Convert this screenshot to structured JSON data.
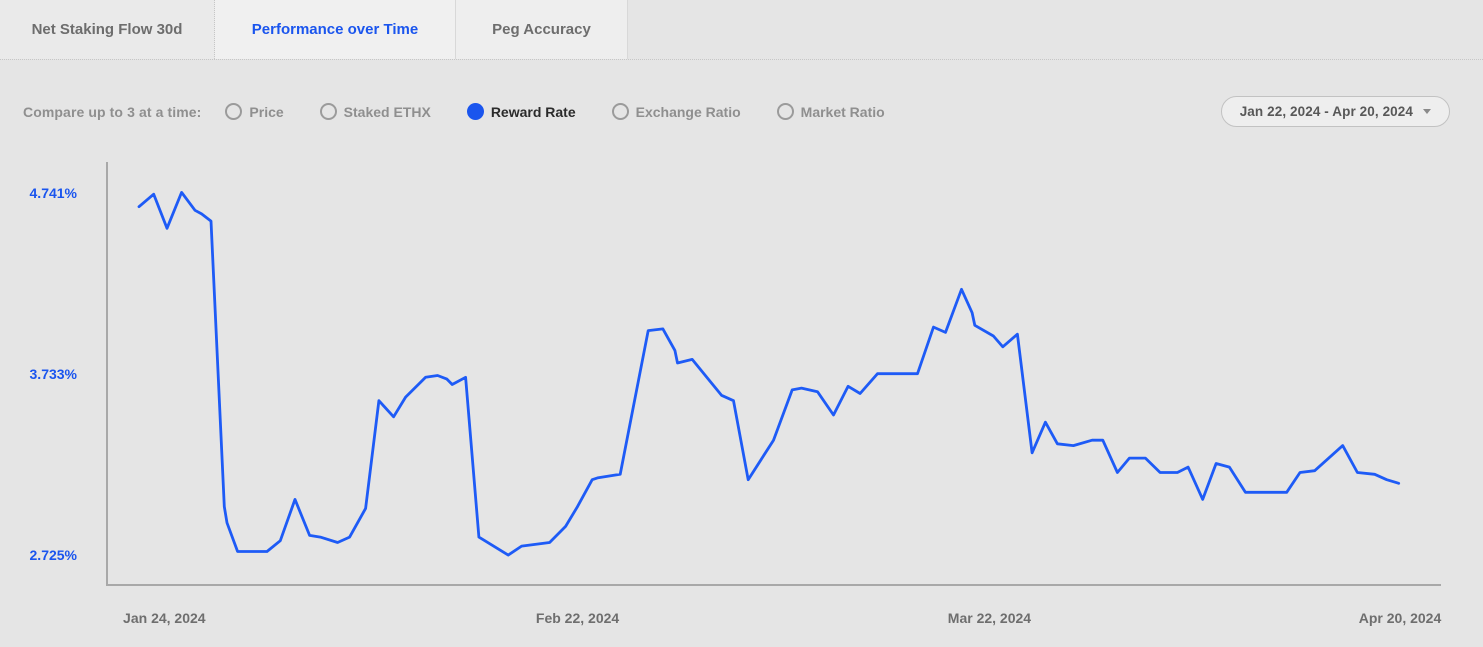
{
  "tabs": [
    {
      "label": "Net Staking Flow 30d",
      "active": false
    },
    {
      "label": "Performance over Time",
      "active": true
    },
    {
      "label": "Peg Accuracy",
      "active": false
    }
  ],
  "controls": {
    "compare_label": "Compare up to 3 at a time:",
    "options": [
      {
        "label": "Price",
        "slug": "price",
        "selected": false
      },
      {
        "label": "Staked ETHX",
        "slug": "staked-ethx",
        "selected": false
      },
      {
        "label": "Reward Rate",
        "slug": "reward-rate",
        "selected": true
      },
      {
        "label": "Exchange Ratio",
        "slug": "exchange-ratio",
        "selected": false
      },
      {
        "label": "Market Ratio",
        "slug": "market-ratio",
        "selected": false
      }
    ],
    "date_range": {
      "label": "Jan 22, 2024 - Apr 20, 2024",
      "icon": "chevron-down"
    }
  },
  "colors": {
    "accent_blue": "#1a55ee",
    "line_blue": "#1e5bf6",
    "page_bg": "#e5e5e5",
    "axis_gray": "#a8a8a8",
    "x_label_gray": "#6e6e6e"
  },
  "chart_data": {
    "type": "line",
    "title": "",
    "unit": "%",
    "grid": false,
    "legend": false,
    "y_ticks": [
      "4.741%",
      "3.733%",
      "2.725%"
    ],
    "y_tick_values": [
      4.741,
      3.733,
      2.725
    ],
    "ylim": [
      2.59,
      4.92
    ],
    "x_labels": [
      {
        "text": "Jan 24, 2024",
        "f": 0.043
      },
      {
        "text": "Feb 22, 2024",
        "f": 0.353
      },
      {
        "text": "Mar 22, 2024",
        "f": 0.662
      },
      {
        "text": "Apr 20, 2024",
        "f": 0.97
      }
    ],
    "series": [
      {
        "name": "Reward Rate",
        "color": "#1e5bf6",
        "points": [
          [
            0.024,
            4.67
          ],
          [
            0.035,
            4.74
          ],
          [
            0.045,
            4.55
          ],
          [
            0.056,
            4.75
          ],
          [
            0.066,
            4.65
          ],
          [
            0.071,
            4.63
          ],
          [
            0.078,
            4.59
          ],
          [
            0.088,
            3.0
          ],
          [
            0.09,
            2.91
          ],
          [
            0.098,
            2.75
          ],
          [
            0.12,
            2.75
          ],
          [
            0.13,
            2.81
          ],
          [
            0.141,
            3.04
          ],
          [
            0.152,
            2.84
          ],
          [
            0.16,
            2.83
          ],
          [
            0.173,
            2.8
          ],
          [
            0.182,
            2.83
          ],
          [
            0.194,
            2.99
          ],
          [
            0.204,
            3.59
          ],
          [
            0.215,
            3.5
          ],
          [
            0.224,
            3.61
          ],
          [
            0.239,
            3.72
          ],
          [
            0.248,
            3.73
          ],
          [
            0.255,
            3.71
          ],
          [
            0.259,
            3.68
          ],
          [
            0.269,
            3.72
          ],
          [
            0.279,
            2.83
          ],
          [
            0.301,
            2.73
          ],
          [
            0.311,
            2.78
          ],
          [
            0.332,
            2.8
          ],
          [
            0.344,
            2.89
          ],
          [
            0.353,
            3.0
          ],
          [
            0.364,
            3.15
          ],
          [
            0.368,
            3.16
          ],
          [
            0.385,
            3.18
          ],
          [
            0.406,
            3.98
          ],
          [
            0.417,
            3.99
          ],
          [
            0.426,
            3.87
          ],
          [
            0.428,
            3.8
          ],
          [
            0.439,
            3.82
          ],
          [
            0.461,
            3.62
          ],
          [
            0.47,
            3.59
          ],
          [
            0.481,
            3.15
          ],
          [
            0.5,
            3.37
          ],
          [
            0.514,
            3.65
          ],
          [
            0.521,
            3.66
          ],
          [
            0.533,
            3.64
          ],
          [
            0.545,
            3.51
          ],
          [
            0.556,
            3.67
          ],
          [
            0.565,
            3.63
          ],
          [
            0.578,
            3.74
          ],
          [
            0.608,
            3.74
          ],
          [
            0.62,
            4.0
          ],
          [
            0.629,
            3.97
          ],
          [
            0.641,
            4.21
          ],
          [
            0.649,
            4.08
          ],
          [
            0.651,
            4.01
          ],
          [
            0.665,
            3.95
          ],
          [
            0.672,
            3.89
          ],
          [
            0.683,
            3.96
          ],
          [
            0.694,
            3.3
          ],
          [
            0.704,
            3.47
          ],
          [
            0.713,
            3.35
          ],
          [
            0.725,
            3.34
          ],
          [
            0.739,
            3.37
          ],
          [
            0.747,
            3.37
          ],
          [
            0.758,
            3.19
          ],
          [
            0.767,
            3.27
          ],
          [
            0.779,
            3.27
          ],
          [
            0.79,
            3.19
          ],
          [
            0.803,
            3.19
          ],
          [
            0.811,
            3.22
          ],
          [
            0.822,
            3.04
          ],
          [
            0.832,
            3.24
          ],
          [
            0.842,
            3.22
          ],
          [
            0.854,
            3.08
          ],
          [
            0.885,
            3.08
          ],
          [
            0.895,
            3.19
          ],
          [
            0.906,
            3.2
          ],
          [
            0.927,
            3.34
          ],
          [
            0.938,
            3.19
          ],
          [
            0.951,
            3.18
          ],
          [
            0.96,
            3.15
          ],
          [
            0.969,
            3.13
          ]
        ]
      }
    ]
  }
}
